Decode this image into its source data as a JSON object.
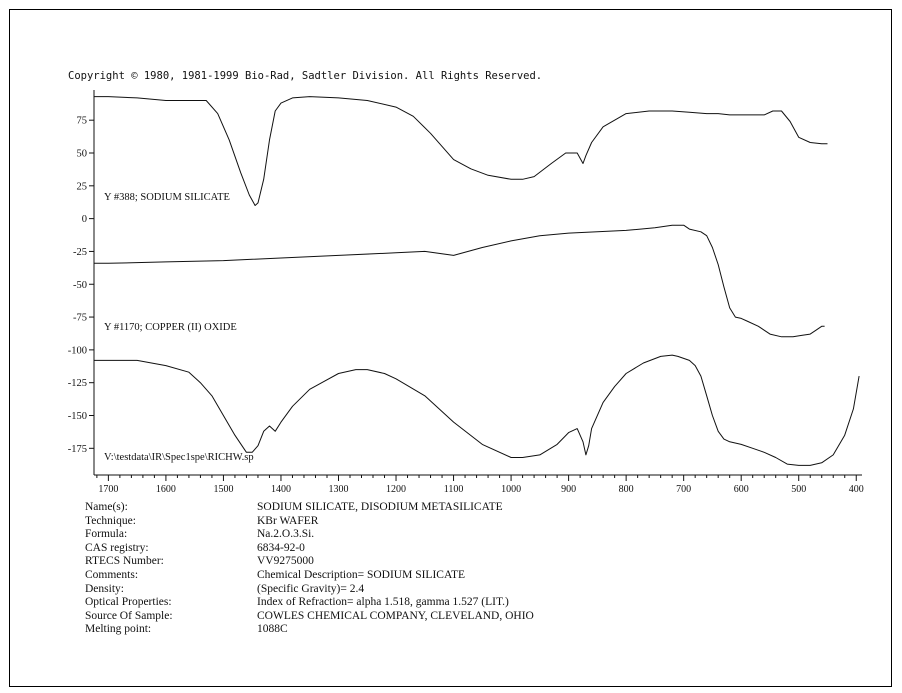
{
  "copyright": "Copyright © 1980, 1981-1999 Bio-Rad, Sadtler Division.  All Rights Reserved.",
  "chart_data": {
    "type": "line",
    "x_ticks": [
      1700,
      1600,
      1500,
      1400,
      1300,
      1200,
      1100,
      1000,
      900,
      800,
      700,
      600,
      500,
      400
    ],
    "y_ticks": [
      75,
      50,
      25,
      0,
      -25,
      -50,
      -75,
      -100,
      -125,
      -150,
      -175
    ],
    "xlim": [
      1725,
      390
    ],
    "ylim": [
      -190,
      98
    ],
    "grid": false,
    "series": [
      {
        "name": "Y #388; SODIUM SILICATE",
        "x": [
          1725,
          1700,
          1650,
          1600,
          1560,
          1530,
          1510,
          1490,
          1470,
          1455,
          1445,
          1440,
          1430,
          1420,
          1410,
          1400,
          1380,
          1350,
          1300,
          1250,
          1200,
          1170,
          1140,
          1100,
          1070,
          1040,
          1000,
          980,
          960,
          930,
          905,
          885,
          875,
          870,
          860,
          840,
          800,
          760,
          720,
          690,
          660,
          640,
          620,
          600,
          580,
          560,
          545,
          530,
          515,
          500,
          480,
          460,
          450
        ],
        "y": [
          93,
          93,
          92,
          90,
          90,
          90,
          80,
          60,
          35,
          18,
          10,
          12,
          30,
          60,
          82,
          88,
          92,
          93,
          92,
          90,
          85,
          78,
          65,
          45,
          38,
          33,
          30,
          30,
          32,
          42,
          50,
          50,
          42,
          48,
          58,
          70,
          80,
          82,
          82,
          81,
          80,
          80,
          79,
          79,
          79,
          79,
          82,
          82,
          74,
          62,
          58,
          57,
          57
        ]
      },
      {
        "name": "Y #1170; COPPER (II) OXIDE",
        "x": [
          1725,
          1700,
          1600,
          1500,
          1400,
          1300,
          1200,
          1150,
          1100,
          1050,
          1000,
          950,
          900,
          850,
          800,
          750,
          720,
          700,
          690,
          670,
          660,
          650,
          640,
          630,
          620,
          610,
          600,
          590,
          570,
          550,
          530,
          510,
          495,
          480,
          470,
          460,
          455
        ],
        "y": [
          -34,
          -34,
          -33,
          -32,
          -30,
          -28,
          -26,
          -25,
          -28,
          -22,
          -17,
          -13,
          -11,
          -10,
          -9,
          -7,
          -5,
          -5,
          -8,
          -10,
          -13,
          -22,
          -35,
          -52,
          -68,
          -75,
          -76,
          -78,
          -82,
          -88,
          -90,
          -90,
          -89,
          -88,
          -85,
          -82,
          -82
        ]
      },
      {
        "name": "V:\\testdata\\IR\\Spec1spe\\RICHW.sp",
        "x": [
          1725,
          1700,
          1650,
          1600,
          1560,
          1540,
          1520,
          1500,
          1480,
          1460,
          1450,
          1440,
          1430,
          1420,
          1410,
          1400,
          1380,
          1350,
          1300,
          1270,
          1250,
          1220,
          1200,
          1150,
          1100,
          1050,
          1000,
          980,
          950,
          920,
          900,
          885,
          875,
          870,
          865,
          860,
          840,
          820,
          800,
          770,
          740,
          720,
          710,
          690,
          680,
          670,
          660,
          650,
          640,
          630,
          620,
          600,
          580,
          560,
          540,
          520,
          500,
          480,
          460,
          440,
          420,
          405,
          395
        ],
        "y": [
          -108,
          -108,
          -108,
          -112,
          -117,
          -125,
          -135,
          -150,
          -165,
          -178,
          -178,
          -173,
          -162,
          -158,
          -162,
          -155,
          -143,
          -130,
          -118,
          -115,
          -115,
          -118,
          -122,
          -135,
          -155,
          -172,
          -182,
          -182,
          -180,
          -172,
          -163,
          -160,
          -170,
          -180,
          -173,
          -160,
          -140,
          -128,
          -118,
          -110,
          -105,
          -104,
          -105,
          -108,
          -112,
          -120,
          -135,
          -150,
          -162,
          -168,
          -170,
          -172,
          -175,
          -178,
          -182,
          -187,
          -188,
          -188,
          -186,
          -180,
          -165,
          -145,
          -120
        ]
      }
    ]
  },
  "metadata": [
    {
      "label": "Name(s):",
      "value": "SODIUM SILICATE, DISODIUM METASILICATE"
    },
    {
      "label": "Technique:",
      "value": "KBr WAFER"
    },
    {
      "label": "Formula:",
      "value": "Na.2.O.3.Si."
    },
    {
      "label": "CAS registry:",
      "value": "6834-92-0"
    },
    {
      "label": "RTECS Number:",
      "value": "VV9275000"
    },
    {
      "label": "Comments:",
      "value": "Chemical Description= SODIUM SILICATE"
    },
    {
      "label": "Density:",
      "value": "(Specific Gravity)= 2.4"
    },
    {
      "label": "Optical Properties:",
      "value": "Index of Refraction= alpha 1.518, gamma 1.527 (LIT.)"
    },
    {
      "label": "Source Of Sample:",
      "value": "COWLES CHEMICAL COMPANY, CLEVELAND, OHIO"
    },
    {
      "label": "Melting point:",
      "value": "1088C"
    }
  ]
}
